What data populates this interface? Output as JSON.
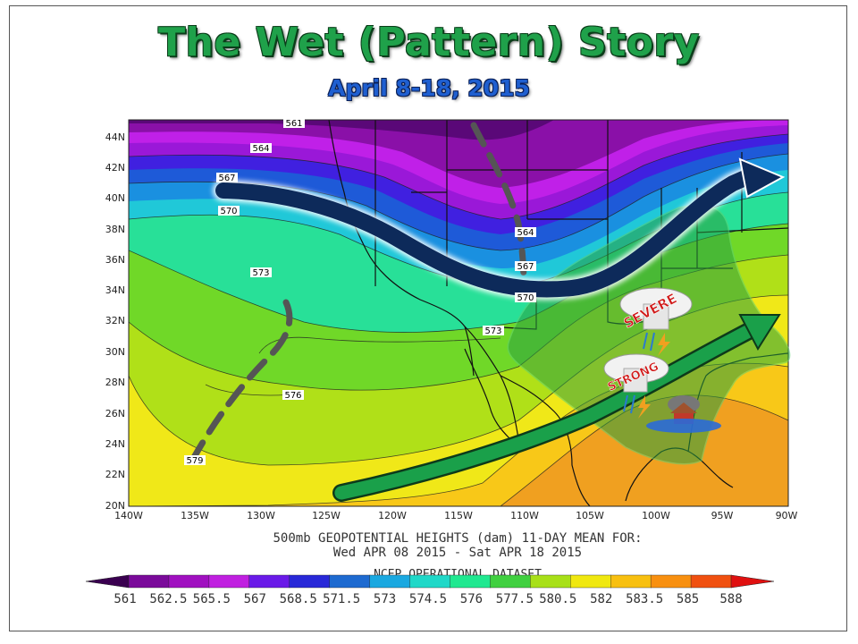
{
  "header": {
    "title": "The Wet (Pattern) Story",
    "subtitle": "April 8-18, 2015"
  },
  "map": {
    "lat_labels": [
      "44N",
      "42N",
      "40N",
      "38N",
      "36N",
      "34N",
      "32N",
      "30N",
      "28N",
      "26N",
      "24N",
      "22N",
      "20N"
    ],
    "lon_labels": [
      "140W",
      "135W",
      "130W",
      "125W",
      "120W",
      "115W",
      "110W",
      "105W",
      "100W",
      "95W",
      "90W"
    ],
    "contour_labels": [
      "561",
      "564",
      "567",
      "570",
      "573",
      "564",
      "567",
      "570",
      "573",
      "576",
      "579"
    ],
    "annotations": {
      "severe": "SEVERE",
      "strong": "STRONG"
    },
    "colors": {
      "ridge_trough_arrow": "#0d2a5a",
      "moisture_arrow": "#1aa04a",
      "moisture_shade": "#2aa040",
      "trough_line": "#555555"
    }
  },
  "caption": {
    "line1": "500mb GEOPOTENTIAL HEIGHTS (dam)   11-DAY MEAN FOR:",
    "line2": "Wed APR 08 2015 - Sat APR 18 2015",
    "line3": "NCEP OPERATIONAL DATASET"
  },
  "colorbar": {
    "labels": [
      "561",
      "562.5",
      "565.5",
      "567",
      "568.5",
      "571.5",
      "573",
      "574.5",
      "576",
      "577.5",
      "580.5",
      "582",
      "583.5",
      "585",
      "588"
    ],
    "colors": [
      "#3a0050",
      "#7a0a9a",
      "#a010c0",
      "#c020e0",
      "#6a1ae8",
      "#2828d8",
      "#1e6ad0",
      "#1aa8e0",
      "#20d8c8",
      "#20e890",
      "#40d040",
      "#a8e018",
      "#f0e810",
      "#f8c010",
      "#f89010",
      "#f05010",
      "#e01010"
    ]
  }
}
